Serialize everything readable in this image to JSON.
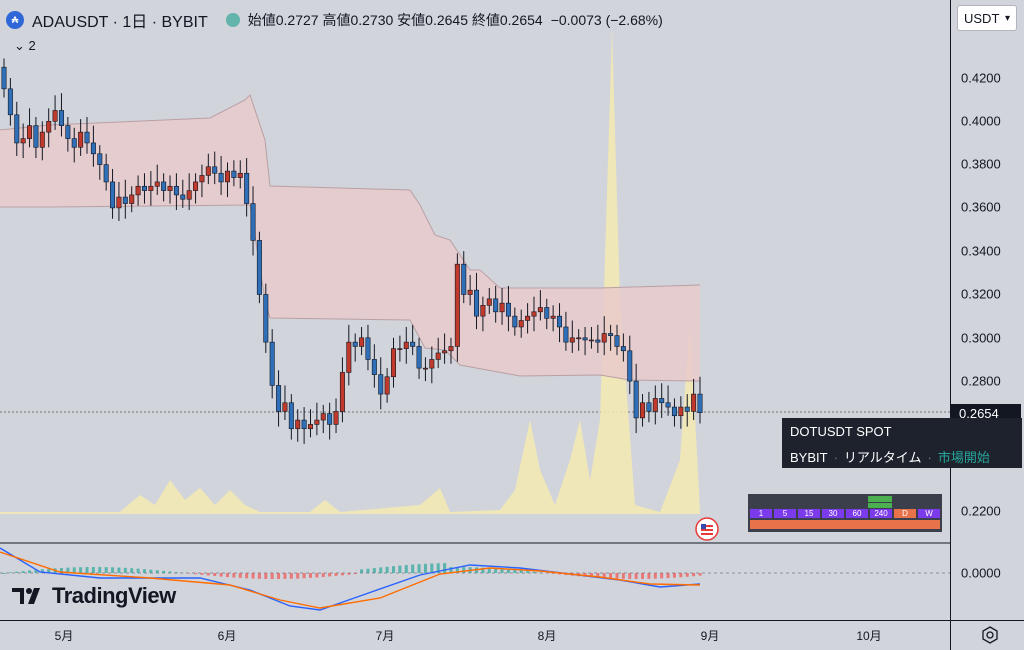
{
  "header": {
    "symbol_icon": "ada-coin-icon",
    "title": "ADAUSDT · 1日 · BYBIT",
    "ohlc": "始値0.2727  高値0.2730  安値0.2645  終値0.2654",
    "change": "−0.0073 (−2.68%)",
    "indicator_count": "2"
  },
  "currency_selector": {
    "value": "USDT"
  },
  "price_axis": {
    "ticks": [
      "0.4200",
      "0.4000",
      "0.3800",
      "0.3600",
      "0.3400",
      "0.3200",
      "0.3000",
      "0.2800",
      "0.2200",
      "0.0000"
    ],
    "last_price": "0.2654"
  },
  "time_axis": {
    "months": [
      "5月",
      "6月",
      "7月",
      "8月",
      "9月",
      "10月"
    ]
  },
  "tooltip": {
    "title": "DOTUSDT SPOT",
    "exchange": "BYBIT",
    "realtime": "リアルタイム",
    "status": "市場開始"
  },
  "timeframes": [
    "1",
    "5",
    "15",
    "30",
    "60",
    "240",
    "D",
    "W"
  ],
  "branding": {
    "logo_text": "TradingView"
  },
  "colors": {
    "up": "#c0392b",
    "down": "#2e6fb8",
    "volume": "#f5eab0",
    "cloud": "#e9c9cc",
    "macd": "#2962ff",
    "signal": "#ff6d00"
  },
  "chart_data": {
    "type": "candlestick",
    "x_range": [
      "2024-04-23",
      "2024-10-31"
    ],
    "ylim": [
      0.21,
      0.43
    ],
    "last_close": 0.2654,
    "candles_close": [
      0.415,
      0.403,
      0.39,
      0.392,
      0.398,
      0.388,
      0.395,
      0.4,
      0.405,
      0.398,
      0.392,
      0.388,
      0.395,
      0.39,
      0.385,
      0.38,
      0.372,
      0.36,
      0.365,
      0.362,
      0.366,
      0.37,
      0.368,
      0.37,
      0.372,
      0.368,
      0.37,
      0.366,
      0.364,
      0.368,
      0.372,
      0.375,
      0.379,
      0.376,
      0.372,
      0.377,
      0.374,
      0.376,
      0.362,
      0.345,
      0.32,
      0.298,
      0.278,
      0.266,
      0.27,
      0.258,
      0.262,
      0.258,
      0.26,
      0.262,
      0.265,
      0.26,
      0.266,
      0.284,
      0.298,
      0.296,
      0.3,
      0.29,
      0.283,
      0.274,
      0.282,
      0.295,
      0.295,
      0.298,
      0.296,
      0.286,
      0.286,
      0.29,
      0.293,
      0.294,
      0.296,
      0.334,
      0.32,
      0.322,
      0.31,
      0.315,
      0.318,
      0.312,
      0.316,
      0.31,
      0.305,
      0.308,
      0.31,
      0.312,
      0.314,
      0.309,
      0.31,
      0.305,
      0.298,
      0.3,
      0.3,
      0.299,
      0.299,
      0.298,
      0.302,
      0.301,
      0.296,
      0.294,
      0.28,
      0.263,
      0.27,
      0.266,
      0.272,
      0.27,
      0.268,
      0.264,
      0.268,
      0.266,
      0.274,
      0.2654
    ]
  }
}
